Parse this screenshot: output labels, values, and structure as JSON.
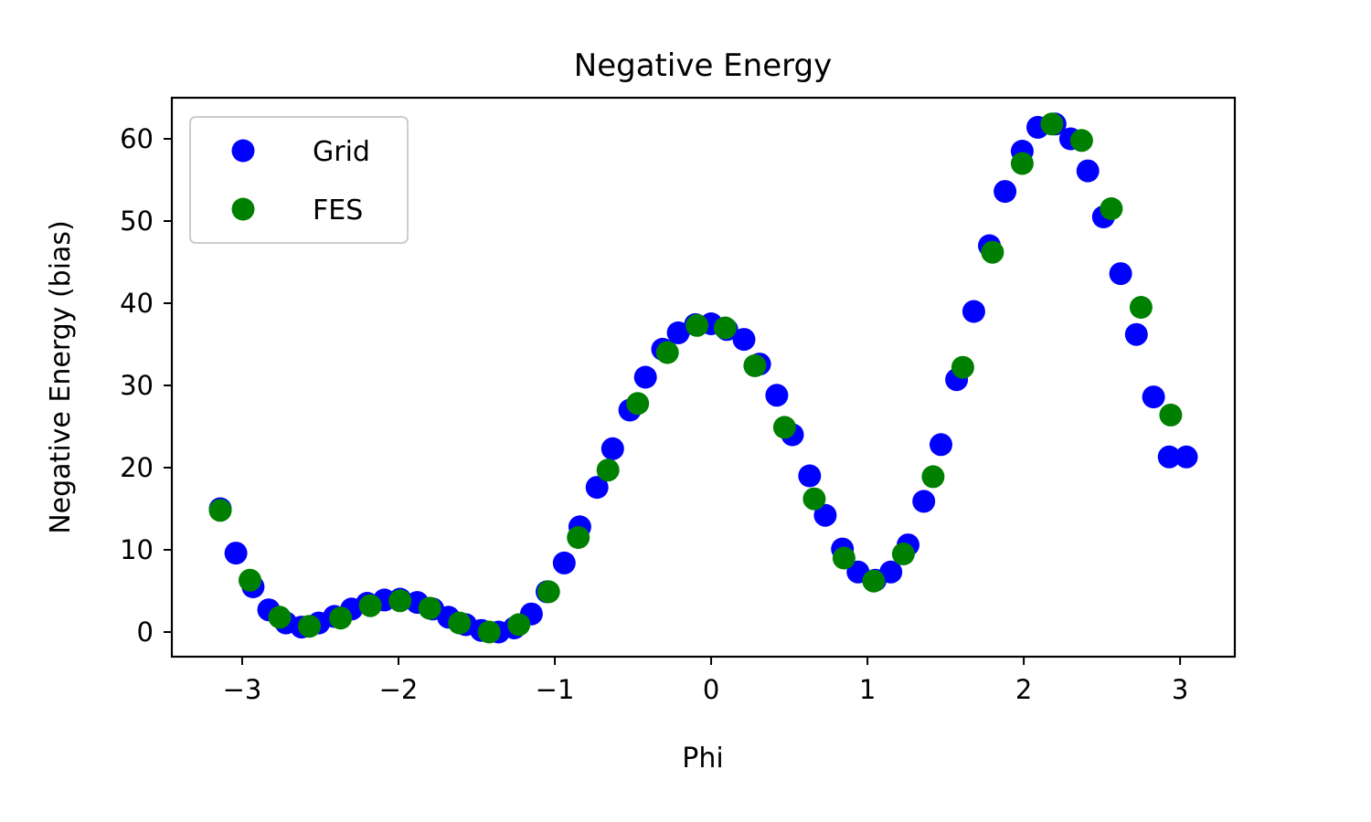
{
  "chart_data": {
    "type": "scatter",
    "title": "Negative Energy",
    "xlabel": "Phi",
    "ylabel": "Negative Energy (bias)",
    "xlim": [
      -3.45,
      3.35
    ],
    "ylim": [
      -3,
      65
    ],
    "xticks": [
      -3,
      -2,
      -1,
      0,
      1,
      2,
      3
    ],
    "xtick_labels": [
      "−3",
      "−2",
      "−1",
      "0",
      "1",
      "2",
      "3"
    ],
    "yticks": [
      0,
      10,
      20,
      30,
      40,
      50,
      60
    ],
    "ytick_labels": [
      "0",
      "10",
      "20",
      "30",
      "40",
      "50",
      "60"
    ],
    "grid": false,
    "legend": "top-left",
    "series": [
      {
        "name": "Grid",
        "color": "#0000ff",
        "x": [
          -3.14,
          -3.04,
          -2.93,
          -2.83,
          -2.72,
          -2.62,
          -2.51,
          -2.41,
          -2.3,
          -2.2,
          -2.09,
          -1.99,
          -1.88,
          -1.78,
          -1.68,
          -1.57,
          -1.47,
          -1.36,
          -1.26,
          -1.15,
          -1.05,
          -0.94,
          -0.84,
          -0.73,
          -0.63,
          -0.52,
          -0.42,
          -0.31,
          -0.21,
          -0.1,
          0.0,
          0.1,
          0.21,
          0.31,
          0.42,
          0.52,
          0.63,
          0.73,
          0.84,
          0.94,
          1.05,
          1.15,
          1.26,
          1.36,
          1.47,
          1.57,
          1.68,
          1.78,
          1.88,
          1.99,
          2.09,
          2.2,
          2.3,
          2.41,
          2.51,
          2.62,
          2.72,
          2.83,
          2.93,
          3.04
        ],
        "y": [
          15.0,
          9.6,
          5.5,
          2.7,
          1.1,
          0.6,
          1.1,
          1.9,
          2.8,
          3.5,
          3.9,
          4.0,
          3.6,
          2.8,
          1.8,
          0.9,
          0.2,
          0.0,
          0.5,
          2.2,
          4.9,
          8.4,
          12.8,
          17.6,
          22.3,
          27.0,
          31.0,
          34.4,
          36.4,
          37.4,
          37.5,
          36.8,
          35.6,
          32.6,
          28.8,
          24.0,
          19.0,
          14.2,
          10.1,
          7.3,
          6.3,
          7.3,
          10.6,
          15.9,
          22.8,
          30.7,
          39.0,
          47.0,
          53.6,
          58.5,
          61.4,
          61.8,
          60.0,
          56.1,
          50.5,
          43.6,
          36.2,
          28.6,
          21.3,
          21.3
        ]
      },
      {
        "name": "FES",
        "color": "#008000",
        "x": [
          -3.14,
          -2.95,
          -2.76,
          -2.57,
          -2.37,
          -2.18,
          -1.99,
          -1.8,
          -1.61,
          -1.42,
          -1.23,
          -1.04,
          -0.85,
          -0.66,
          -0.47,
          -0.28,
          -0.09,
          0.09,
          0.28,
          0.47,
          0.66,
          0.85,
          1.04,
          1.23,
          1.42,
          1.61,
          1.8,
          1.99,
          2.18,
          2.37,
          2.56,
          2.75,
          2.94
        ],
        "y": [
          14.8,
          6.3,
          1.8,
          0.7,
          1.7,
          3.2,
          3.8,
          2.9,
          1.1,
          0.0,
          0.9,
          4.9,
          11.5,
          19.7,
          27.8,
          34.0,
          37.3,
          37.0,
          32.4,
          24.9,
          16.2,
          9.0,
          6.2,
          9.5,
          18.9,
          32.2,
          46.2,
          57.0,
          61.8,
          59.8,
          51.5,
          39.5,
          26.4
        ]
      }
    ]
  }
}
